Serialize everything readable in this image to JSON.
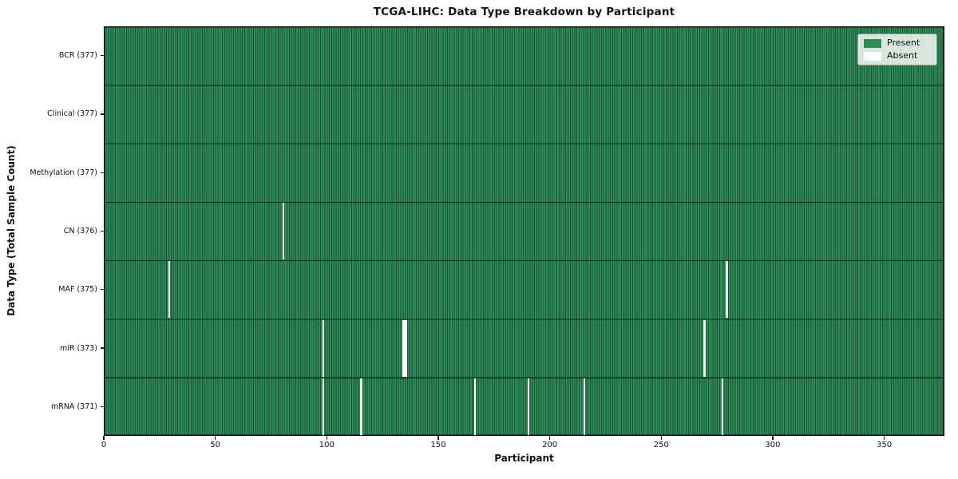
{
  "figure": {
    "title": "TCGA-LIHC: Data Type Breakdown by Participant",
    "xlabel": "Participant",
    "ylabel": "Data Type (Total Sample Count)"
  },
  "legend": {
    "present_label": "Present",
    "absent_label": "Absent"
  },
  "colors": {
    "present": "#2e8b57",
    "absent": "#ffffff",
    "cell_edge": "#17412a",
    "row_divider": "#0b1f15",
    "axis_spine": "#0b0b0b",
    "legend_border": "#9a9a9a"
  },
  "chart_data": {
    "type": "heatmap",
    "title": "TCGA-LIHC: Data Type Breakdown by Participant",
    "xlabel": "Participant",
    "ylabel": "Data Type (Total Sample Count)",
    "xlim": [
      0,
      377
    ],
    "x_ticks": [
      0,
      50,
      100,
      150,
      200,
      250,
      300,
      350
    ],
    "n_participants": 377,
    "grid": false,
    "legend_entries": [
      "Present",
      "Absent"
    ],
    "legend_position": "upper right",
    "value_encoding": {
      "present": 1,
      "absent": 0
    },
    "rows": [
      {
        "label": "BCR (377)",
        "data_type": "BCR",
        "total_samples": 377,
        "absent_participant_indices": []
      },
      {
        "label": "Clinical (377)",
        "data_type": "Clinical",
        "total_samples": 377,
        "absent_participant_indices": []
      },
      {
        "label": "Methylation (377)",
        "data_type": "Methylation",
        "total_samples": 377,
        "absent_participant_indices": []
      },
      {
        "label": "CN (376)",
        "data_type": "CN",
        "total_samples": 376,
        "absent_participant_indices": [
          80
        ]
      },
      {
        "label": "MAF (375)",
        "data_type": "MAF",
        "total_samples": 375,
        "absent_participant_indices": [
          29,
          279
        ]
      },
      {
        "label": "miR (373)",
        "data_type": "miR",
        "total_samples": 373,
        "absent_participant_indices": [
          98,
          134,
          135,
          269
        ]
      },
      {
        "label": "mRNA (371)",
        "data_type": "mRNA",
        "total_samples": 371,
        "absent_participant_indices": [
          98,
          115,
          166,
          190,
          215,
          277
        ]
      }
    ]
  }
}
